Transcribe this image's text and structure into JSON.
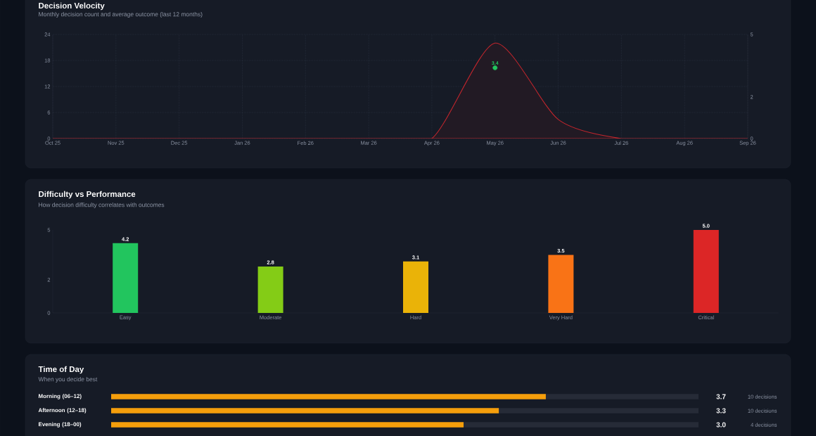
{
  "chart_data": [
    {
      "type": "area",
      "title": "Decision Velocity",
      "subtitle": "Monthly decision count and average outcome (last 12 months)",
      "categories": [
        "Oct 25",
        "Nov 25",
        "Dec 25",
        "Jan 26",
        "Feb 26",
        "Mar 26",
        "Apr 26",
        "May 26",
        "Jun 26",
        "Jul 26",
        "Aug 26",
        "Sep 26"
      ],
      "series": [
        {
          "color": "#c0262d",
          "values": [
            0,
            0,
            0,
            0,
            0,
            0,
            0,
            22,
            4.4,
            0,
            0,
            0
          ]
        },
        {
          "type": "scatter",
          "axis": "y2",
          "color": "#22c55e",
          "values": [
            null,
            null,
            null,
            null,
            null,
            null,
            null,
            3.4,
            null,
            null,
            null,
            null
          ],
          "value_labels": [
            null,
            null,
            null,
            null,
            null,
            null,
            null,
            "3.4",
            null,
            null,
            null,
            null
          ]
        }
      ],
      "ylim": [
        0,
        24
      ],
      "yticks": [
        0,
        6,
        12,
        18,
        24
      ],
      "y2lim": [
        0,
        5
      ],
      "y2ticks": [
        0,
        2,
        5
      ],
      "grid": true
    },
    {
      "type": "bar",
      "title": "Difficulty vs Performance",
      "subtitle": "How decision difficulty correlates with outcomes",
      "categories": [
        "Easy",
        "Moderate",
        "Hard",
        "Very Hard",
        "Critical"
      ],
      "values": [
        4.2,
        2.8,
        3.1,
        3.5,
        5.0
      ],
      "value_labels": [
        "4.2",
        "2.8",
        "3.1",
        "3.5",
        "5.0"
      ],
      "colors": [
        "#22c55e",
        "#84cc16",
        "#eab308",
        "#f97316",
        "#dc2626"
      ],
      "ylim": [
        0,
        5
      ],
      "yticks": [
        0,
        2,
        5
      ]
    },
    {
      "type": "bar",
      "orientation": "horizontal",
      "title": "Time of Day",
      "subtitle": "When you decide best",
      "categories": [
        "Morning (06–12)",
        "Afternoon (12–18)",
        "Evening (18–00)"
      ],
      "values": [
        3.7,
        3.3,
        3.0
      ],
      "value_labels": [
        "3.7",
        "3.3",
        "3.0"
      ],
      "color": "#f59e0b",
      "xlim": [
        0,
        5
      ],
      "tick_labels": "y",
      "annotations": [
        "10 decisions",
        "10 decisions",
        "4 decisions"
      ]
    }
  ]
}
